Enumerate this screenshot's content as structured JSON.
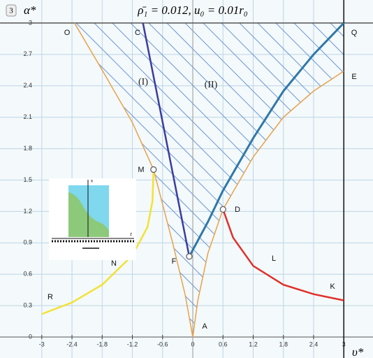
{
  "chart_data": {
    "type": "line",
    "badge": "3",
    "title": "ρ̄₁ = 0.012, u₀ = 0.01r₀",
    "x_label": "υ*",
    "y_label": "α*",
    "xlim": [
      -3.83,
      3.58
    ],
    "ylim": [
      -0.2,
      3.22
    ],
    "xticks": [
      -3,
      -2.4,
      -1.8,
      -1.2,
      -0.6,
      0,
      0.6,
      1.2,
      1.8,
      2.4,
      3
    ],
    "yticks": [
      0,
      0.3,
      0.6,
      0.9,
      1.2,
      1.5,
      1.8,
      2.1,
      2.4,
      2.7,
      3
    ],
    "grid": true,
    "series": [
      {
        "color": "#e8a24a",
        "x": [
          -2.35,
          -1.8,
          -1.2,
          -0.78,
          -0.4,
          -0.15,
          0
        ],
        "values": [
          3,
          2.55,
          2.05,
          1.6,
          0.9,
          0.4,
          0
        ]
      },
      {
        "color": "#e8a24a",
        "x": [
          0,
          0.1,
          0.3,
          0.6,
          1.2,
          1.8,
          2.4,
          3
        ],
        "values": [
          0,
          0.35,
          0.8,
          1.22,
          1.72,
          2.1,
          2.35,
          2.54
        ]
      },
      {
        "color": "#3a3d9e",
        "x": [
          -0.99,
          -0.07
        ],
        "values": [
          3,
          0.77
        ]
      },
      {
        "color": "#2f78a8",
        "x": [
          -0.07,
          0.3,
          0.6,
          1.2,
          1.8,
          2.4,
          3
        ],
        "values": [
          0.77,
          1.1,
          1.4,
          1.9,
          2.35,
          2.7,
          3
        ]
      },
      {
        "color": "#f2e233",
        "x": [
          -3,
          -2.4,
          -1.8,
          -1.2,
          -0.9,
          -0.8,
          -0.78
        ],
        "values": [
          0.22,
          0.33,
          0.5,
          0.78,
          1.05,
          1.3,
          1.6
        ]
      },
      {
        "color": "#e0302a",
        "x": [
          0.6,
          0.8,
          1.2,
          1.8,
          2.4,
          3
        ],
        "values": [
          1.22,
          0.95,
          0.68,
          0.5,
          0.41,
          0.35
        ]
      }
    ],
    "markers": {
      "x": [
        -0.78,
        0.6,
        -0.07
      ],
      "values": [
        1.6,
        1.22,
        0.77
      ]
    },
    "annotations": [
      "O",
      "C",
      "Q",
      "E",
      "(I)",
      "(II)",
      "M",
      "D",
      "F",
      "N",
      "L",
      "R",
      "K",
      "A"
    ]
  },
  "inset": {
    "labels": [
      "x",
      "z"
    ]
  }
}
